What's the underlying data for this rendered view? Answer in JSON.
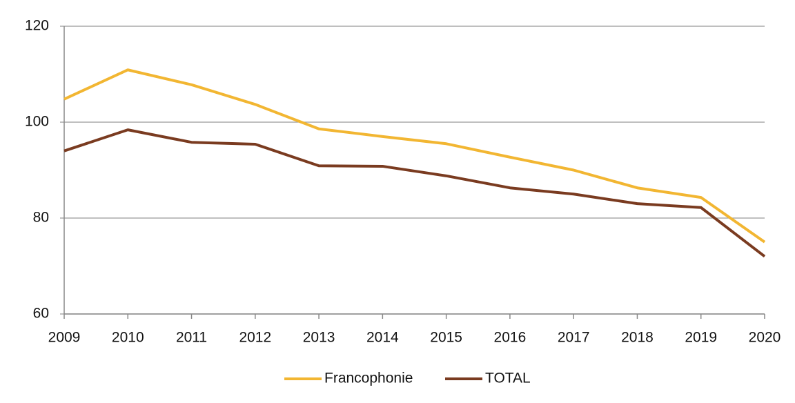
{
  "chart_data": {
    "type": "line",
    "x": [
      2009,
      2010,
      2011,
      2012,
      2013,
      2014,
      2015,
      2016,
      2017,
      2018,
      2019,
      2020
    ],
    "xlim": [
      2009,
      2020
    ],
    "series": [
      {
        "name": "Francophonie",
        "color": "#f2b632",
        "values": [
          104.8,
          110.9,
          107.8,
          103.7,
          98.6,
          97,
          95.5,
          92.7,
          90,
          86.3,
          84.3,
          75
        ]
      },
      {
        "name": "TOTAL",
        "color": "#7a3b20",
        "values": [
          94,
          98.4,
          95.8,
          95.4,
          90.9,
          90.8,
          88.8,
          86.3,
          85,
          83,
          82.2,
          72
        ]
      }
    ],
    "ylim": [
      60,
      120
    ],
    "yticks": [
      60,
      80,
      100,
      120
    ],
    "grid": true,
    "legend": "bottom"
  }
}
